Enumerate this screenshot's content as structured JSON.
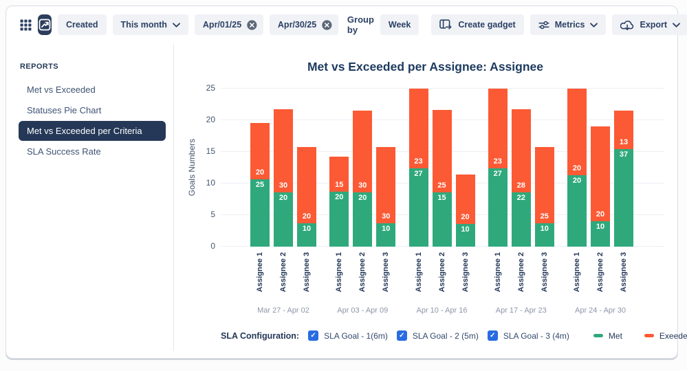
{
  "theme": {
    "navy": "#253858",
    "button_bg": "#f0f2f6",
    "checkbox_blue": "#2a6be2",
    "met_green": "#2fa97c",
    "exceeded_orange": "#fb5a35"
  },
  "toolbar": {
    "created_label": "Created",
    "period": "This month",
    "date_from": "Apr/01/25",
    "date_to": "Apr/30/25",
    "group_by_label": "Group by",
    "group_by_value": "Week",
    "create_gadget": "Create gadget",
    "metrics": "Metrics",
    "export": "Export"
  },
  "sidebar": {
    "header": "REPORTS",
    "items": [
      {
        "label": "Met vs Exceeded",
        "selected": false
      },
      {
        "label": "Statuses Pie Chart",
        "selected": false
      },
      {
        "label": "Met vs Exceeded per Criteria",
        "selected": true
      },
      {
        "label": "SLA Success Rate",
        "selected": false
      }
    ]
  },
  "chart_data": {
    "type": "bar",
    "stacked": true,
    "title": "Met vs Exceeded per Assignee: Assignee",
    "ylabel": "Goals Numbers",
    "ylim": [
      0,
      25
    ],
    "yticks": [
      0,
      5,
      10,
      15,
      20,
      25
    ],
    "grid": true,
    "colors": {
      "met": "#2fa97c",
      "exceeded": "#fb5a35"
    },
    "groups": [
      {
        "period": "Mar 27 - Apr 02",
        "bars": [
          {
            "assignee": "Assignee 1",
            "met_label": 25,
            "met_height": 10.6,
            "exceeded_label": 20,
            "exceeded_height": 9.0
          },
          {
            "assignee": "Assignee 2",
            "met_label": 20,
            "met_height": 8.6,
            "exceeded_label": 30,
            "exceeded_height": 13.1
          },
          {
            "assignee": "Assignee 3",
            "met_label": 10,
            "met_height": 3.7,
            "exceeded_label": 20,
            "exceeded_height": 12.1
          }
        ]
      },
      {
        "period": "Apr 03 - Apr 09",
        "bars": [
          {
            "assignee": "Assignee 1",
            "met_label": 20,
            "met_height": 8.7,
            "exceeded_label": 15,
            "exceeded_height": 5.5
          },
          {
            "assignee": "Assignee 2",
            "met_label": 20,
            "met_height": 8.6,
            "exceeded_label": 30,
            "exceeded_height": 12.9
          },
          {
            "assignee": "Assignee 3",
            "met_label": 10,
            "met_height": 3.7,
            "exceeded_label": 30,
            "exceeded_height": 12.1
          }
        ]
      },
      {
        "period": "Apr 10 - Apr 16",
        "bars": [
          {
            "assignee": "Assignee 1",
            "met_label": 27,
            "met_height": 12.4,
            "exceeded_label": 23,
            "exceeded_height": 12.6
          },
          {
            "assignee": "Assignee 2",
            "met_label": 15,
            "met_height": 8.6,
            "exceeded_label": 25,
            "exceeded_height": 13.0
          },
          {
            "assignee": "Assignee 3",
            "met_label": 10,
            "met_height": 3.6,
            "exceeded_label": 20,
            "exceeded_height": 7.8
          }
        ]
      },
      {
        "period": "Apr 17 - Apr 23",
        "bars": [
          {
            "assignee": "Assignee 1",
            "met_label": 27,
            "met_height": 12.4,
            "exceeded_label": 23,
            "exceeded_height": 12.6
          },
          {
            "assignee": "Assignee 2",
            "met_label": 22,
            "met_height": 8.6,
            "exceeded_label": 28,
            "exceeded_height": 13.1
          },
          {
            "assignee": "Assignee 3",
            "met_label": 10,
            "met_height": 3.7,
            "exceeded_label": 25,
            "exceeded_height": 12.1
          }
        ]
      },
      {
        "period": "Apr 24 - Apr 30",
        "bars": [
          {
            "assignee": "Assignee 1",
            "met_label": 20,
            "met_height": 11.3,
            "exceeded_label": 20,
            "exceeded_height": 13.7
          },
          {
            "assignee": "Assignee 2",
            "met_label": 10,
            "met_height": 4.0,
            "exceeded_label": 20,
            "exceeded_height": 15.0
          },
          {
            "assignee": "Assignee 3",
            "met_label": 37,
            "met_height": 15.4,
            "exceeded_label": 13,
            "exceeded_height": 6.1
          }
        ]
      }
    ],
    "legend": {
      "config_label": "SLA Configuration:",
      "checkboxes": [
        {
          "label": "SLA Goal - 1(6m)",
          "checked": true
        },
        {
          "label": "SLA Goal - 2 (5m)",
          "checked": true
        },
        {
          "label": "SLA Goal - 3 (4m)",
          "checked": true
        }
      ],
      "series": [
        {
          "name": "Met",
          "color": "#2fa97c"
        },
        {
          "name": "Exeeded",
          "color": "#fb5a35"
        }
      ]
    }
  }
}
